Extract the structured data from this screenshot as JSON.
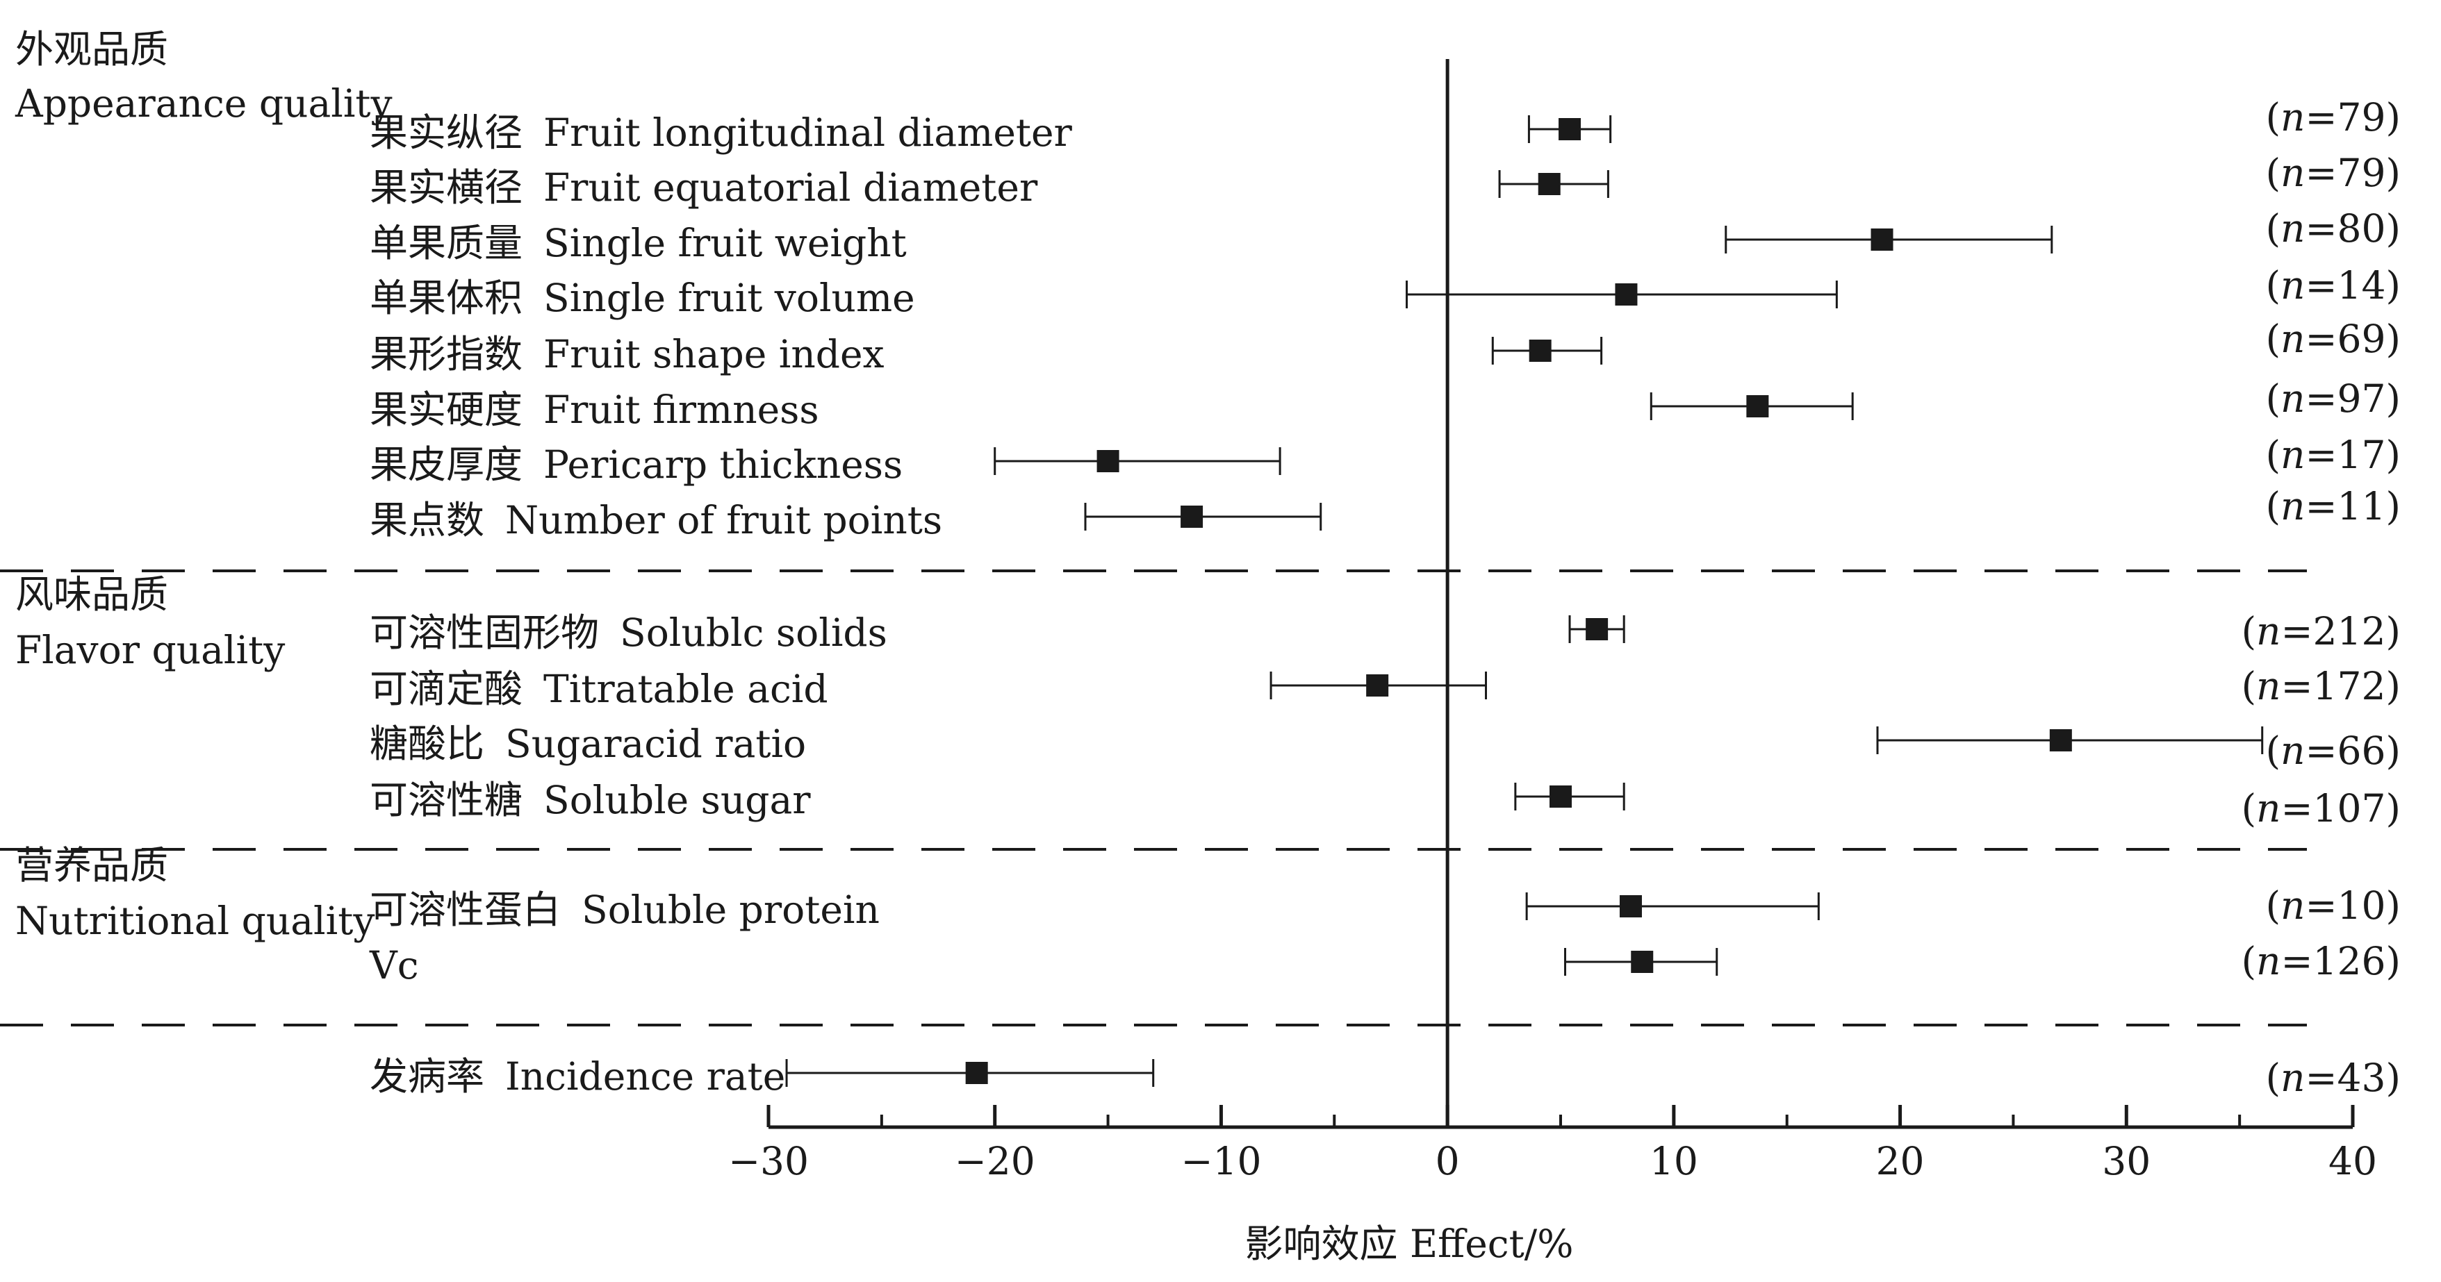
{
  "chart_data": {
    "type": "forest",
    "xlabel": "影响效应 Effect/%",
    "xlim": [
      -30,
      40
    ],
    "xticks": [
      -30,
      -20,
      -10,
      0,
      10,
      20,
      30,
      40
    ],
    "xtick_labels": [
      "−30",
      "−20",
      "−10",
      "0",
      "10",
      "20",
      "30",
      "40"
    ],
    "groups": [
      {
        "label_cn": "外观品质",
        "label_en": "Appearance quality",
        "items": [
          {
            "cn": "果实纵径",
            "en": "Fruit longitudinal diameter",
            "n": "(n=79)",
            "effect": 5.4,
            "ci_low": 3.6,
            "ci_high": 7.2
          },
          {
            "cn": "果实横径",
            "en": "Fruit equatorial diameter",
            "n": "(n=79)",
            "effect": 4.5,
            "ci_low": 2.3,
            "ci_high": 7.1
          },
          {
            "cn": "单果质量",
            "en": "Single fruit weight",
            "n": "(n=80)",
            "effect": 19.2,
            "ci_low": 12.3,
            "ci_high": 26.7
          },
          {
            "cn": "单果体积",
            "en": "Single fruit volume",
            "n": "(n=14)",
            "effect": 7.9,
            "ci_low": -1.8,
            "ci_high": 17.2
          },
          {
            "cn": "果形指数",
            "en": "Fruit shape index",
            "n": "(n=69)",
            "effect": 4.1,
            "ci_low": 2.0,
            "ci_high": 6.8
          },
          {
            "cn": "果实硬度",
            "en": "Fruit firmness",
            "n": "(n=97)",
            "effect": 13.7,
            "ci_low": 9.0,
            "ci_high": 17.9
          },
          {
            "cn": "果皮厚度",
            "en": "Pericarp thickness",
            "n": "(n=17)",
            "effect": -15.0,
            "ci_low": -20.0,
            "ci_high": -7.4
          },
          {
            "cn": "果点数",
            "en": "Number of fruit points",
            "n": "(n=11)",
            "effect": -11.3,
            "ci_low": -16.0,
            "ci_high": -5.6
          }
        ]
      },
      {
        "label_cn": "风味品质",
        "label_en": "Flavor quality",
        "items": [
          {
            "cn": "可溶性固形物",
            "en": "Solublc solids",
            "n": "(n=212)",
            "effect": 6.6,
            "ci_low": 5.4,
            "ci_high": 7.8
          },
          {
            "cn": "可滴定酸",
            "en": "Titratable acid",
            "n": "(n=172)",
            "effect": -3.1,
            "ci_low": -7.8,
            "ci_high": 1.7
          },
          {
            "cn": "糖酸比",
            "en": "Sugaracid ratio",
            "n": "(n=66)",
            "effect": 27.1,
            "ci_low": 19.0,
            "ci_high": 36.0
          },
          {
            "cn": "可溶性糖",
            "en": "Soluble sugar",
            "n": "(n=107)",
            "effect": 5.0,
            "ci_low": 3.0,
            "ci_high": 7.8
          }
        ]
      },
      {
        "label_cn": "营养品质",
        "label_en": "Nutritional quality",
        "items": [
          {
            "cn": "可溶性蛋白",
            "en": "Soluble protein",
            "n": "(n=10)",
            "effect": 8.1,
            "ci_low": 3.5,
            "ci_high": 16.4
          },
          {
            "cn": "",
            "en": "Vc",
            "n": "(n=126)",
            "effect": 8.6,
            "ci_low": 5.2,
            "ci_high": 11.9
          }
        ]
      },
      {
        "label_cn": "",
        "label_en": "",
        "items": [
          {
            "cn": "发病率",
            "en": "Incidence rate",
            "n": "(n=43)",
            "effect": -20.8,
            "ci_low": -29.2,
            "ci_high": -13.0
          }
        ]
      }
    ],
    "colors": {
      "marker": "#1a1a1a",
      "line": "#1a1a1a",
      "background": "#ffffff"
    }
  }
}
